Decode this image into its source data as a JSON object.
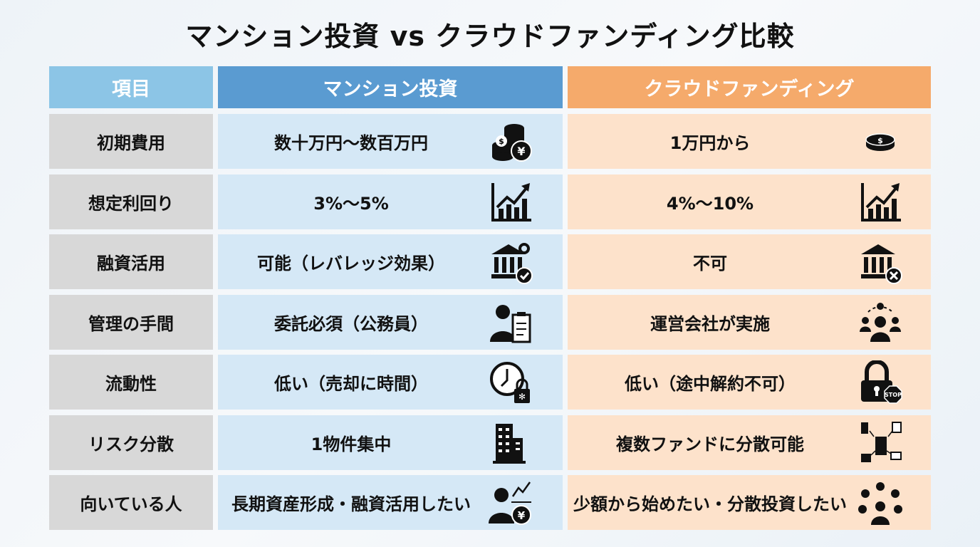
{
  "title": "マンション投資 vs クラウドファンディング比較",
  "header": {
    "item": "項目",
    "mansion": "マンション投資",
    "crowd": "クラウドファンディング"
  },
  "colors": {
    "header_item": "#8cc5e6",
    "header_mansion": "#5a9bd1",
    "header_crowd": "#f5aa6b",
    "item_bg": "#d8d8d8",
    "mansion_bg": "#d5e8f6",
    "crowd_bg": "#fde2cb"
  },
  "rows": [
    {
      "item": "初期費用",
      "mansion": "数十万円〜数百万円",
      "mansion_icon": "coins-yen-icon",
      "crowd": "1万円から",
      "crowd_icon": "coin-icon"
    },
    {
      "item": "想定利回り",
      "mansion": "3%〜5%",
      "mansion_icon": "growth-chart-icon",
      "crowd": "4%〜10%",
      "crowd_icon": "growth-chart-icon"
    },
    {
      "item": "融資活用",
      "mansion": "可能（レバレッジ効果）",
      "mansion_icon": "bank-check-icon",
      "crowd": "不可",
      "crowd_icon": "bank-x-icon"
    },
    {
      "item": "管理の手間",
      "mansion": "委託必須（公務員）",
      "mansion_icon": "person-clipboard-icon",
      "crowd": "運営会社が実施",
      "crowd_icon": "team-network-icon"
    },
    {
      "item": "流動性",
      "mansion": "低い（売却に時間）",
      "mansion_icon": "clock-lock-icon",
      "crowd": "低い（途中解約不可）",
      "crowd_icon": "lock-stop-icon"
    },
    {
      "item": "リスク分散",
      "mansion": "1物件集中",
      "mansion_icon": "building-icon",
      "crowd": "複数ファンドに分散可能",
      "crowd_icon": "diversified-buildings-icon"
    },
    {
      "item": "向いている人",
      "mansion": "長期資産形成・融資活用したい",
      "mansion_icon": "person-moneybag-icon",
      "crowd": "少額から始めたい・分散投資したい",
      "crowd_icon": "person-investments-icon"
    }
  ]
}
